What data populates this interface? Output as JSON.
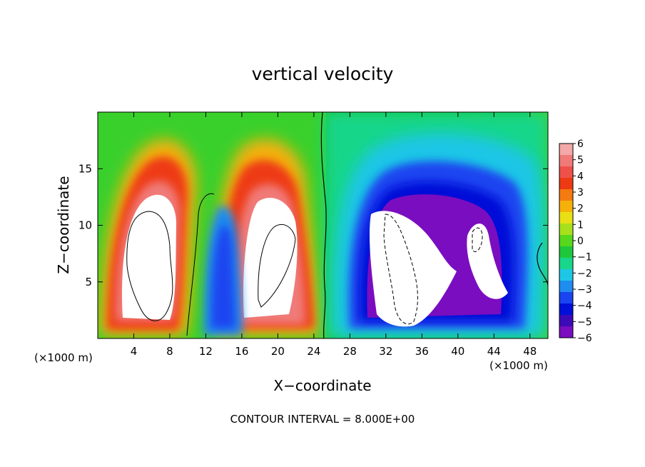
{
  "chart_data": {
    "type": "heatmap",
    "title": "vertical velocity",
    "xlabel": "X−coordinate",
    "ylabel": "Z−coordinate",
    "x_unit_left": "(×1000 m)",
    "x_unit_right": "(×1000 m)",
    "footer": "CONTOUR INTERVAL = 8.000E+00",
    "xlim": [
      0,
      50
    ],
    "ylim": [
      0,
      20
    ],
    "x_ticks": [
      4,
      8,
      12,
      16,
      20,
      24,
      28,
      32,
      36,
      40,
      44,
      48
    ],
    "x_tick_labels": [
      "4",
      "8",
      "12",
      "16",
      "20",
      "24",
      "28",
      "32",
      "36",
      "40",
      "44",
      "48"
    ],
    "y_ticks": [
      5,
      10,
      15
    ],
    "y_tick_labels": [
      "5",
      "10",
      "15"
    ],
    "colorbar": {
      "range": [
        -6,
        6
      ],
      "tick_values": [
        6,
        5,
        4,
        3,
        2,
        1,
        0,
        -1,
        -2,
        -3,
        -4,
        -5,
        -6
      ],
      "tick_labels": [
        "6",
        "5",
        "4",
        "3",
        "2",
        "1",
        "0",
        "−1",
        "−2",
        "−3",
        "−4",
        "−5",
        "−6"
      ],
      "colors": [
        "#7a0dbf",
        "#3d0ab8",
        "#0010d8",
        "#1a44f0",
        "#1f8cf0",
        "#1ec6e6",
        "#18d68a",
        "#1ec83c",
        "#56d81c",
        "#a8e01c",
        "#e8e014",
        "#f5b00a",
        "#f57a10",
        "#ee3a12",
        "#f0504a",
        "#f07a78",
        "#f4a8a8"
      ]
    },
    "cells": [
      {
        "x": 6,
        "z": 8,
        "w": 8
      },
      {
        "x": 19,
        "z": 9,
        "w": 8
      },
      {
        "x": 14,
        "z": 6,
        "w": -4
      },
      {
        "x": 35,
        "z": 7,
        "w": -8
      },
      {
        "x": 43,
        "z": 7,
        "w": -7
      },
      {
        "x": 30,
        "z": 12,
        "w": -3
      },
      {
        "x": 40,
        "z": 14,
        "w": -3
      },
      {
        "x": 48,
        "z": 8,
        "w": 0
      }
    ]
  }
}
